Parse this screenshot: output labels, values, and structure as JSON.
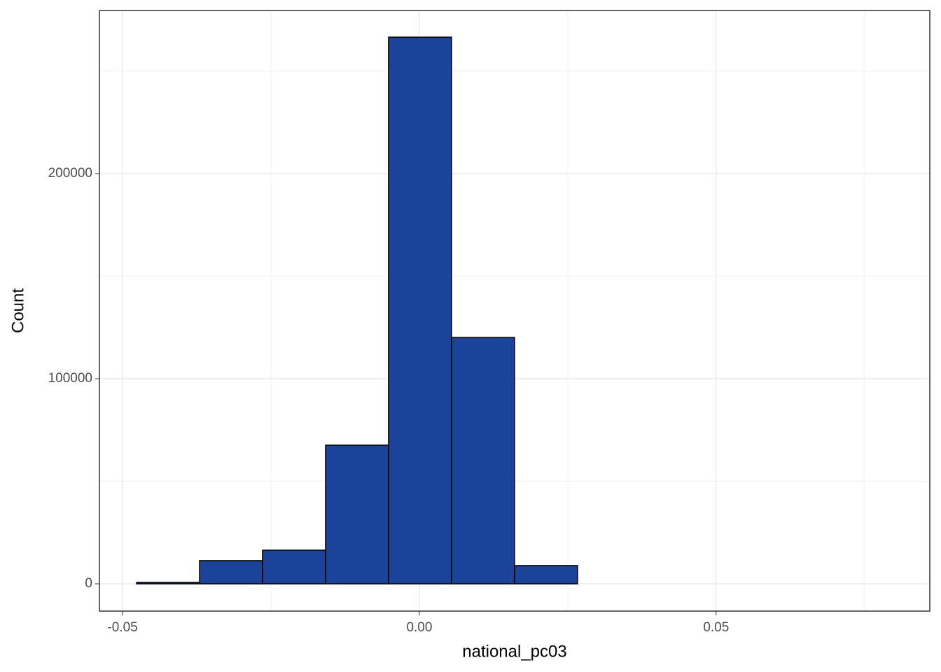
{
  "chart_data": {
    "type": "histogram",
    "x_label": "national_pc03",
    "y_label": "Count",
    "bins": [
      -0.04764,
      -0.03703,
      -0.02642,
      -0.0158,
      -0.00519,
      0.00542,
      0.01604,
      0.02665,
      0.03726,
      0.04788,
      0.0585,
      0.0691,
      0.0797
    ],
    "counts": [
      700,
      11300,
      16400,
      67600,
      266500,
      120100,
      8900,
      0,
      0,
      0,
      0,
      0
    ],
    "color": "#1a4399",
    "edge_color": "#000000",
    "xlim": [
      -0.0539,
      0.086
    ],
    "ylim": [
      -13300,
      279500
    ],
    "xticks": [
      -0.05,
      {
        "value": 0,
        "label": "0.00"
      },
      0.05
    ],
    "yticks": [
      0,
      100000,
      200000
    ],
    "minor_xticks": [
      -0.025,
      0.025,
      0.075
    ],
    "minor_yticks": [
      50000,
      150000,
      250000
    ],
    "grid": true
  }
}
